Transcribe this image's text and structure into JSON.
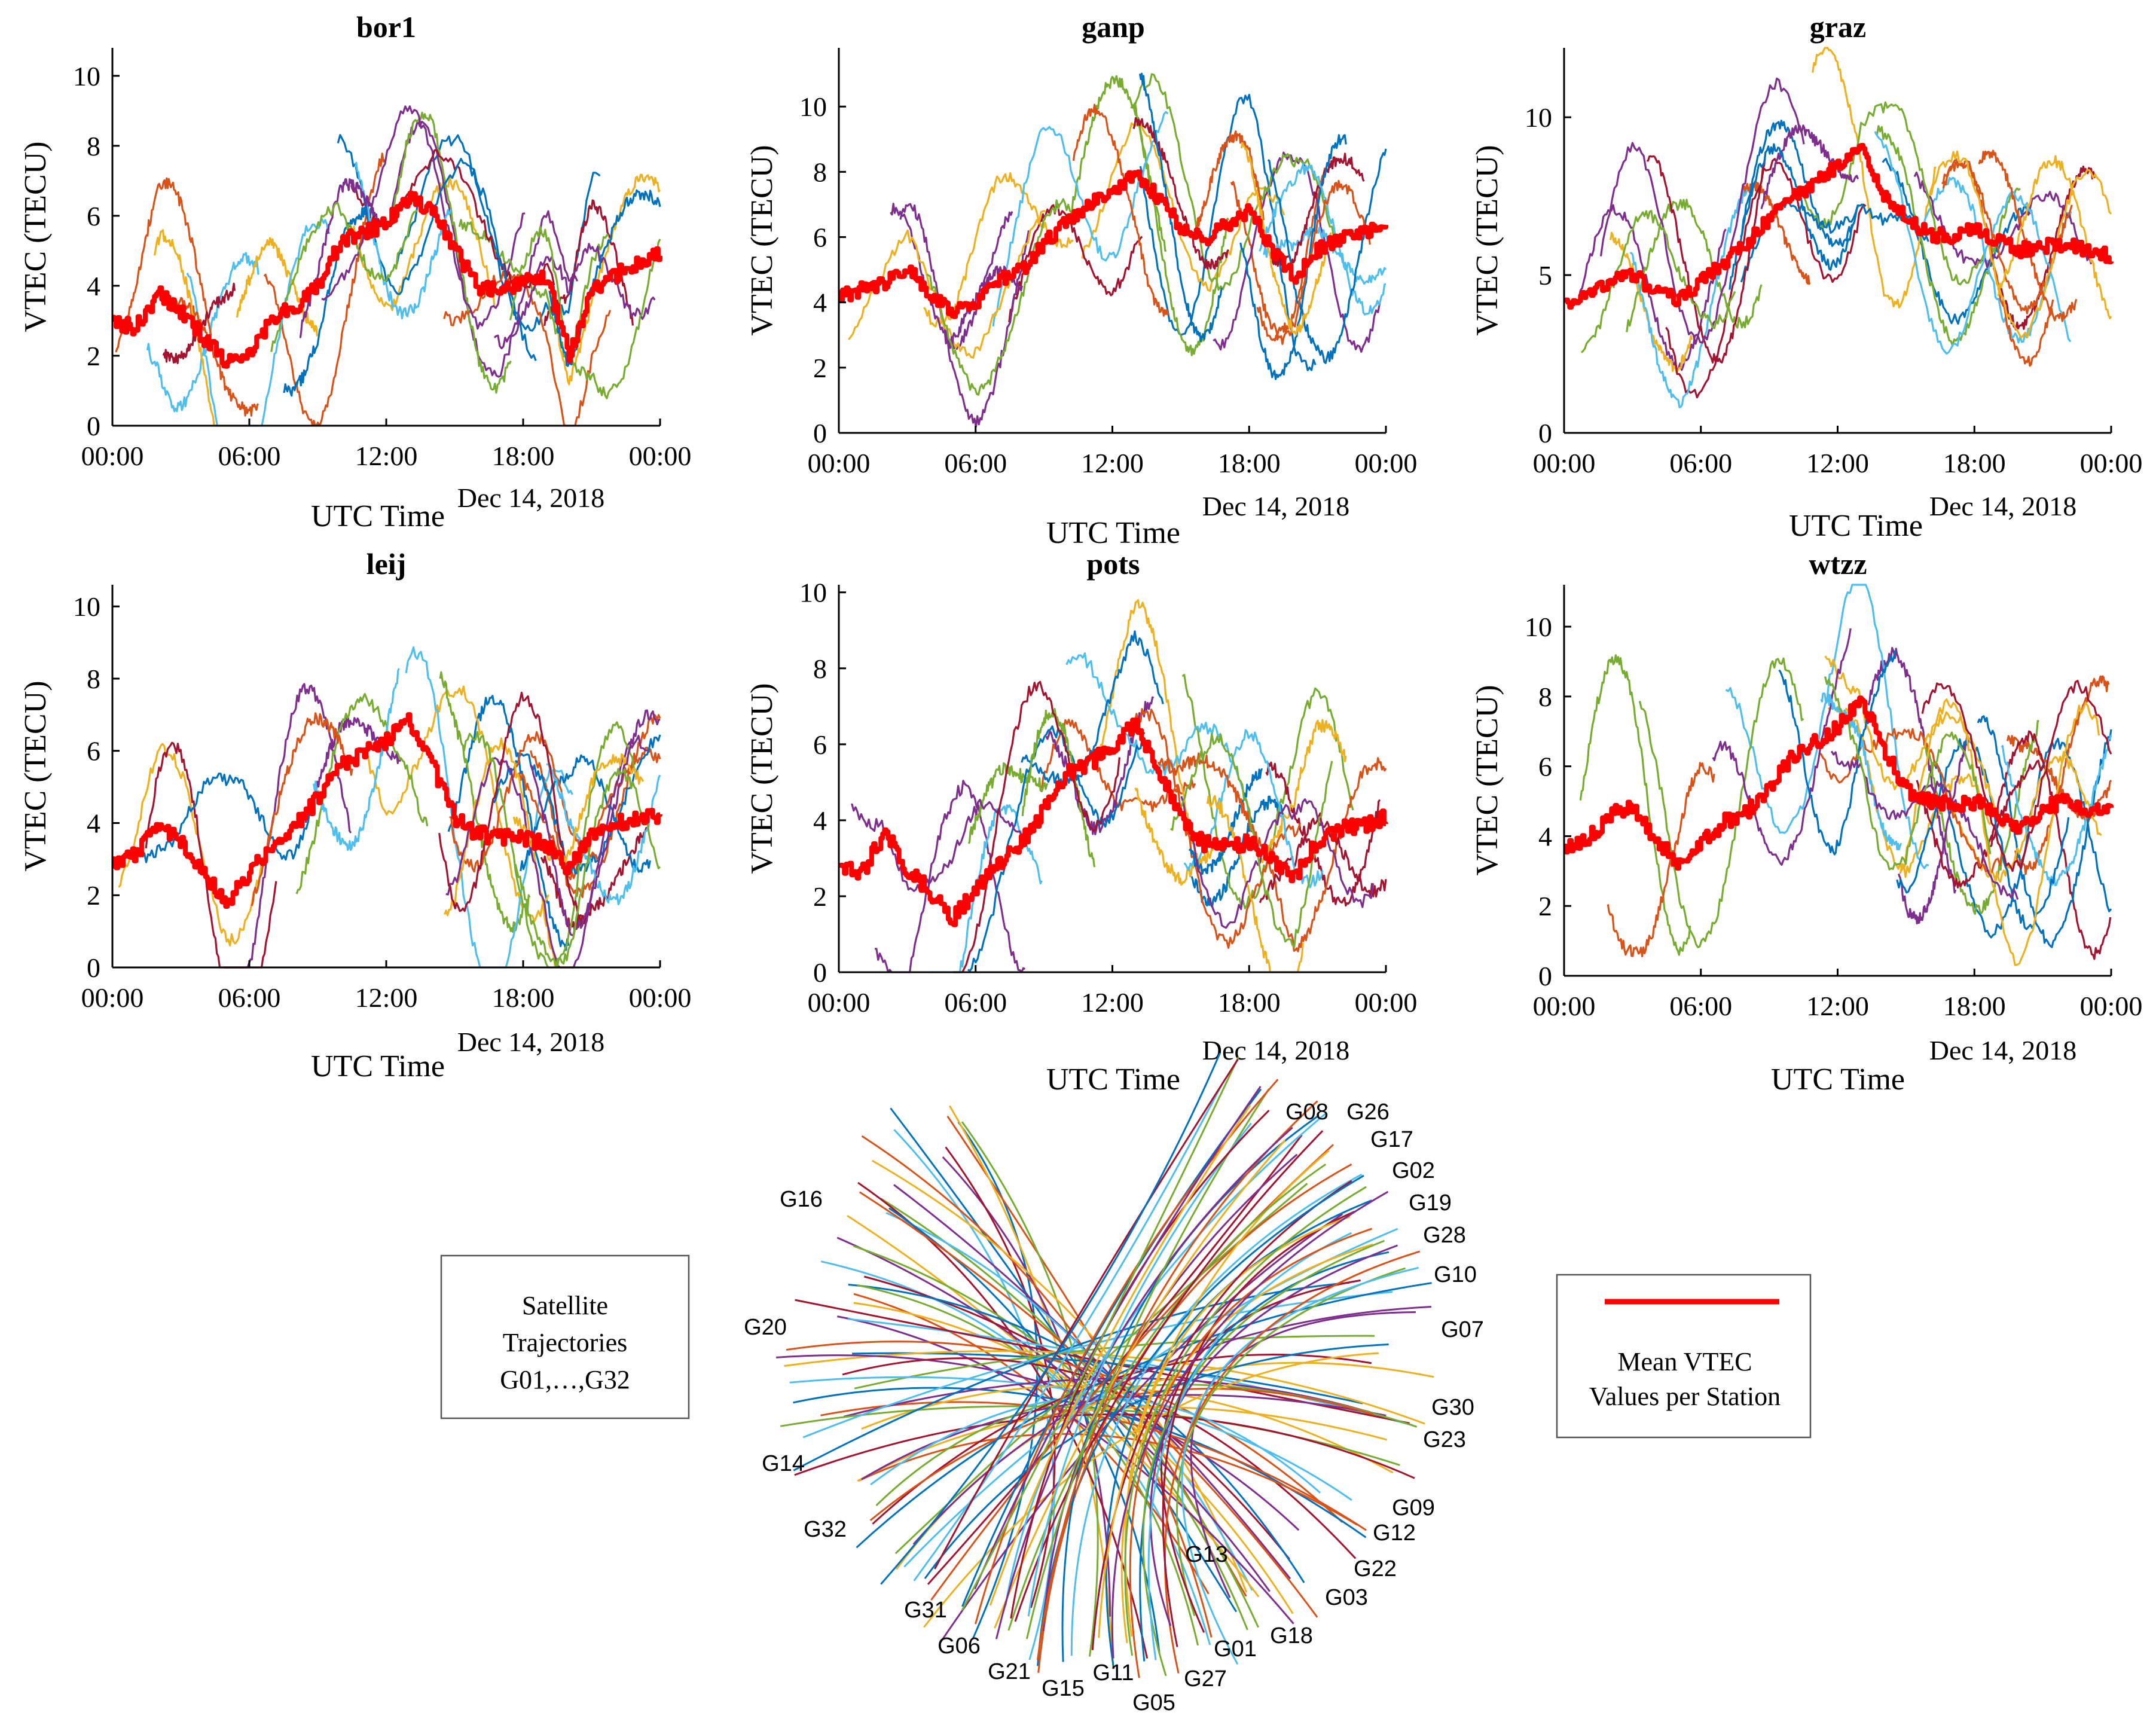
{
  "chart_data": {
    "type": "line",
    "date": "Dec 14, 2018",
    "xlabel": "UTC Time",
    "ylabel": "VTEC (TECU)",
    "x_ticks": [
      "00:00",
      "06:00",
      "12:00",
      "18:00",
      "00:00"
    ],
    "xlim_hours": [
      0,
      24
    ],
    "series_colors": [
      "#0072bd",
      "#d95319",
      "#edb120",
      "#7e2f8e",
      "#77ac30",
      "#4dbeee",
      "#a2142f"
    ],
    "mean_color": "#ff0000",
    "panels": [
      {
        "title": "bor1",
        "ylim": [
          0,
          10.8
        ],
        "yticks": [
          0,
          2,
          4,
          6,
          8,
          10
        ],
        "mean": [
          3,
          2.8,
          3.8,
          3.2,
          2.5,
          1.8,
          2.1,
          3.1,
          3.4,
          4.0,
          5.3,
          5.5,
          5.8,
          6.5,
          6.2,
          5.0,
          4.0,
          3.8,
          4.2,
          4.3,
          2.0,
          3.8,
          4.3,
          4.6,
          5.0
        ]
      },
      {
        "title": "ganp",
        "ylim": [
          0,
          11.8
        ],
        "yticks": [
          0,
          2,
          4,
          6,
          8,
          10
        ],
        "mean": [
          4.2,
          4.4,
          4.6,
          5.1,
          4.2,
          3.7,
          4.0,
          4.7,
          5.0,
          5.8,
          6.5,
          7.0,
          7.4,
          8.0,
          7.2,
          6.3,
          5.9,
          6.4,
          6.8,
          5.6,
          4.8,
          5.6,
          6.0,
          6.2,
          6.3
        ]
      },
      {
        "title": "graz",
        "ylim": [
          0,
          12.2
        ],
        "yticks": [
          0,
          5,
          10
        ],
        "mean": [
          4.1,
          4.4,
          4.8,
          5.0,
          4.5,
          4.2,
          4.8,
          5.4,
          6.0,
          6.8,
          7.5,
          7.9,
          8.5,
          9.0,
          7.5,
          6.8,
          6.3,
          6.2,
          6.5,
          6.1,
          5.8,
          5.9,
          6.0,
          5.8,
          5.6
        ]
      },
      {
        "title": "leij",
        "ylim": [
          0,
          10.6
        ],
        "yticks": [
          0,
          2,
          4,
          6,
          8,
          10
        ],
        "mean": [
          2.9,
          3.1,
          4.0,
          3.5,
          2.6,
          1.8,
          2.6,
          3.4,
          3.9,
          4.7,
          5.6,
          5.9,
          6.3,
          6.8,
          5.6,
          4.1,
          3.7,
          3.6,
          3.6,
          3.4,
          2.7,
          3.7,
          4.0,
          4.1,
          4.2
        ]
      },
      {
        "title": "pots",
        "ylim": [
          0,
          10.2
        ],
        "yticks": [
          0,
          2,
          4,
          6,
          8,
          10
        ],
        "mean": [
          2.7,
          2.6,
          3.7,
          2.7,
          2.1,
          1.4,
          2.2,
          2.9,
          3.4,
          4.3,
          5.2,
          5.5,
          6.0,
          6.5,
          5.4,
          4.0,
          3.4,
          3.3,
          3.4,
          3.0,
          2.5,
          3.5,
          3.8,
          3.9,
          4.1
        ]
      },
      {
        "title": "wtzz",
        "ylim": [
          0,
          11.2
        ],
        "yticks": [
          0,
          2,
          4,
          6,
          8,
          10
        ],
        "mean": [
          3.6,
          3.9,
          4.6,
          4.9,
          3.9,
          3.2,
          3.8,
          4.4,
          4.7,
          5.4,
          6.3,
          6.7,
          7.1,
          8.0,
          6.5,
          5.3,
          5.0,
          4.9,
          5.0,
          4.6,
          4.2,
          4.8,
          5.0,
          4.8,
          4.8
        ]
      }
    ],
    "trajectories": {
      "left_labels": [
        "G16",
        "G20",
        "G14",
        "G32",
        "G31",
        "G06",
        "G21",
        "G15",
        "G11",
        "G05"
      ],
      "right_labels": [
        "G08",
        "G26",
        "G17",
        "G02",
        "G19",
        "G28",
        "G10",
        "G07",
        "G30",
        "G23",
        "G09",
        "G12",
        "G22",
        "G03",
        "G18",
        "G01",
        "G27",
        "G13"
      ]
    }
  },
  "legend_left": {
    "line1": "Satellite",
    "line2": "Trajectories",
    "line3": "G01,…,G32"
  },
  "legend_right": {
    "line1": "Mean VTEC",
    "line2": "Values per Station"
  }
}
